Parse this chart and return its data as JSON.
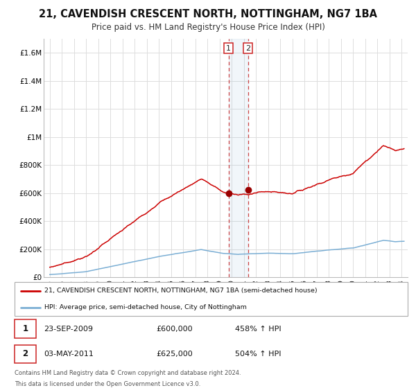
{
  "title": "21, CAVENDISH CRESCENT NORTH, NOTTINGHAM, NG7 1BA",
  "subtitle": "Price paid vs. HM Land Registry's House Price Index (HPI)",
  "legend_line1": "21, CAVENDISH CRESCENT NORTH, NOTTINGHAM, NG7 1BA (semi-detached house)",
  "legend_line2": "HPI: Average price, semi-detached house, City of Nottingham",
  "footnote1": "Contains HM Land Registry data © Crown copyright and database right 2024.",
  "footnote2": "This data is licensed under the Open Government Licence v3.0.",
  "hpi_color": "#7aaed4",
  "price_color": "#cc0000",
  "marker_color": "#990000",
  "point1_date": "23-SEP-2009",
  "point1_price": "£600,000",
  "point1_hpi": "458% ↑ HPI",
  "point2_date": "03-MAY-2011",
  "point2_price": "£625,000",
  "point2_hpi": "504% ↑ HPI",
  "point1_x": 2009.73,
  "point1_y": 600000,
  "point2_x": 2011.34,
  "point2_y": 625000,
  "ylim": [
    0,
    1700000
  ],
  "xlim": [
    1994.5,
    2024.5
  ],
  "yticks": [
    0,
    200000,
    400000,
    600000,
    800000,
    1000000,
    1200000,
    1400000,
    1600000
  ],
  "ytick_labels": [
    "£0",
    "£200K",
    "£400K",
    "£600K",
    "£800K",
    "£1M",
    "£1.2M",
    "£1.4M",
    "£1.6M"
  ],
  "background_color": "#ffffff",
  "grid_color": "#dddddd"
}
